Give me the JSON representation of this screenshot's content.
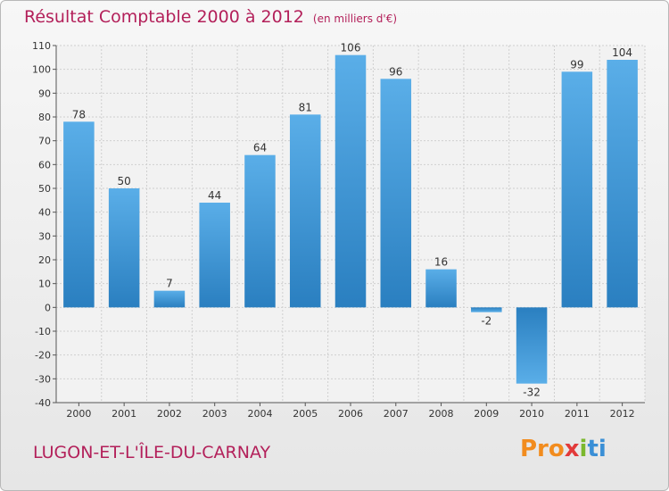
{
  "header": {
    "title": "Résultat Comptable 2000 à 2012",
    "subtitle": "(en milliers d'€)"
  },
  "footer": {
    "commune": "LUGON-ET-L'ÎLE-DU-CARNAY",
    "logo_parts": [
      "Pro",
      "x",
      "i",
      "ti"
    ]
  },
  "colors": {
    "title": "#b3205a",
    "bar_light": "#5aaee8",
    "bar_dark": "#2a7fc0"
  },
  "chart_data": {
    "type": "bar",
    "title": "Résultat Comptable 2000 à 2012",
    "subtitle": "(en milliers d'€)",
    "xlabel": "",
    "ylabel": "",
    "categories": [
      "2000",
      "2001",
      "2002",
      "2003",
      "2004",
      "2005",
      "2006",
      "2007",
      "2008",
      "2009",
      "2010",
      "2011",
      "2012"
    ],
    "values": [
      78,
      50,
      7,
      44,
      64,
      81,
      106,
      96,
      16,
      -2,
      -32,
      99,
      104
    ],
    "data_labels": [
      "78",
      "50",
      "7",
      "44",
      "64",
      "81",
      "106",
      "96",
      "16",
      "-2",
      "-32",
      "99",
      "104"
    ],
    "ylim": [
      -40,
      110
    ],
    "yticks": [
      -40,
      -30,
      -20,
      -10,
      0,
      10,
      20,
      30,
      40,
      50,
      60,
      70,
      80,
      90,
      100,
      110
    ],
    "grid": true
  }
}
